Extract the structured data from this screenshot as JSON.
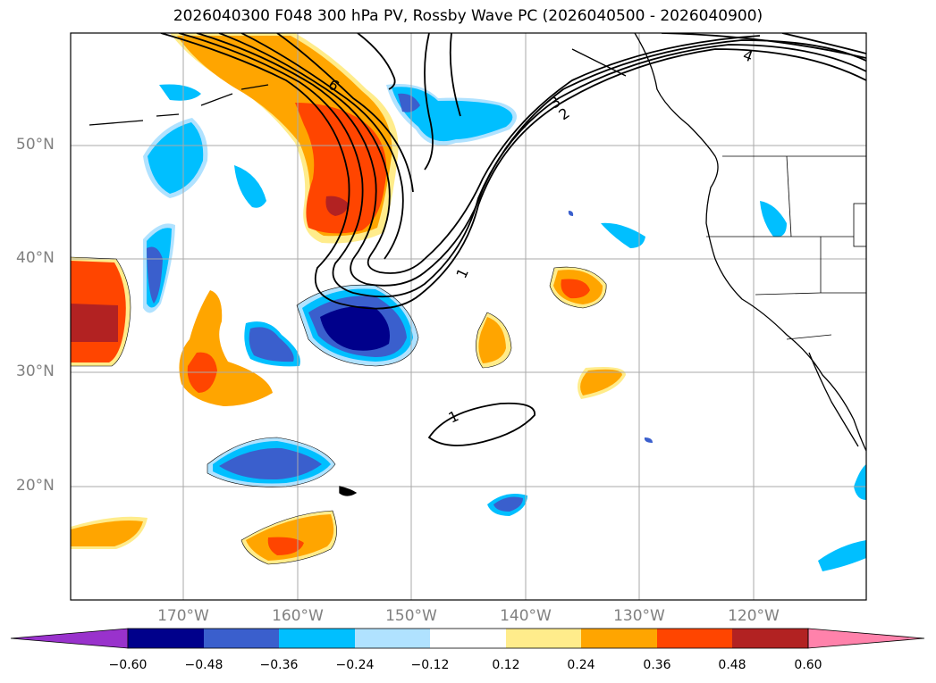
{
  "title": "2026040300 F048 300 hPa PV, Rossby Wave PC (2026040500 - 2026040900)",
  "lat_labels": [
    "50°N",
    "40°N",
    "30°N",
    "20°N"
  ],
  "lon_labels": [
    "170°W",
    "160°W",
    "150°W",
    "140°W",
    "130°W",
    "120°W"
  ],
  "contour_labels": [
    "6",
    "4",
    "3",
    "2",
    "1",
    "1"
  ],
  "colorbar": {
    "ticks": [
      "−0.60",
      "−0.48",
      "−0.36",
      "−0.24",
      "−0.12",
      "0.12",
      "0.24",
      "0.36",
      "0.48",
      "0.60"
    ],
    "colors": [
      "#9932cc",
      "#00008b",
      "#3a5fcd",
      "#00bfff",
      "#b0e2ff",
      "#ffffff",
      "#ffec8b",
      "#ffa500",
      "#ff4500",
      "#b22222",
      "#ff82ab"
    ]
  }
}
